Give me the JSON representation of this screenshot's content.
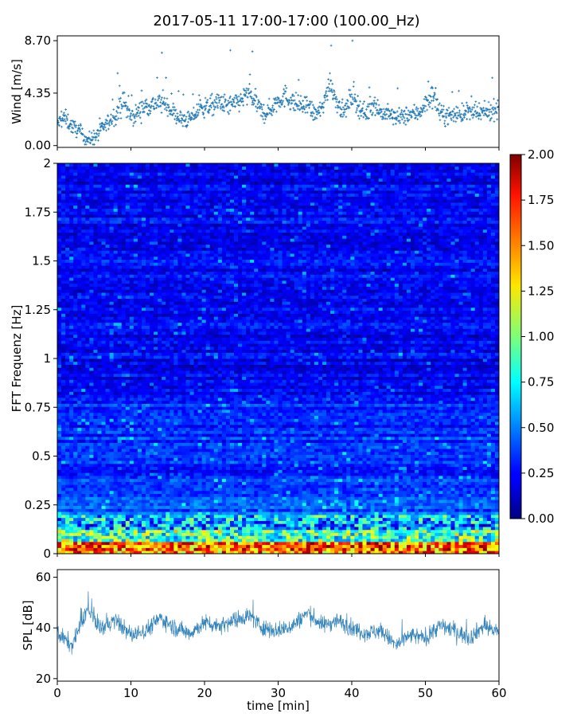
{
  "figure": {
    "title": "2017-05-11 17:00-17:00 (100.00_Hz)"
  },
  "chart_data": [
    {
      "type": "scatter",
      "panel": "wind",
      "ylabel": "Wind [m/s]",
      "xlabel": "",
      "xlim": [
        0,
        60
      ],
      "ylim": [
        0,
        8.7
      ],
      "yticks": [
        0,
        4.35,
        8.7
      ],
      "ytick_labels": [
        "0.00",
        "4.35",
        "8.70"
      ],
      "marker": "+",
      "color": "#1f77b4",
      "envelope": {
        "x": [
          0,
          1,
          2,
          3,
          4,
          5,
          6,
          7,
          8,
          9,
          10,
          11,
          12,
          13,
          14,
          15,
          16,
          17,
          18,
          19,
          20,
          21,
          22,
          23,
          24,
          25,
          26,
          27,
          28,
          29,
          30,
          31,
          32,
          33,
          34,
          35,
          36,
          37,
          38,
          39,
          40,
          41,
          42,
          43,
          44,
          45,
          46,
          47,
          48,
          49,
          50,
          51,
          52,
          53,
          54,
          55,
          56,
          57,
          58,
          59,
          60
        ],
        "y": [
          1.8,
          2.3,
          1.6,
          1.2,
          0.5,
          0.6,
          1.3,
          2.0,
          2.6,
          3.7,
          2.3,
          2.8,
          3.3,
          3.4,
          3.6,
          3.3,
          2.6,
          2.1,
          2.2,
          2.8,
          3.2,
          3.3,
          3.6,
          3.3,
          3.4,
          3.8,
          4.3,
          3.5,
          2.6,
          3.0,
          3.8,
          4.1,
          3.6,
          3.3,
          3.2,
          2.6,
          3.0,
          5.4,
          3.6,
          2.7,
          4.2,
          3.2,
          2.6,
          3.6,
          2.7,
          2.6,
          2.3,
          2.4,
          2.6,
          2.7,
          3.4,
          4.3,
          2.6,
          2.5,
          2.6,
          2.7,
          2.8,
          2.6,
          2.7,
          2.9,
          3.2
        ]
      }
    },
    {
      "type": "heatmap",
      "panel": "spectrogram",
      "ylabel": "FFT Frequenz [Hz]",
      "xlabel": "",
      "xlim": [
        0,
        60
      ],
      "ylim": [
        0,
        2
      ],
      "yticks": [
        0,
        0.25,
        0.5,
        0.75,
        1,
        1.25,
        1.5,
        1.75,
        2
      ],
      "ytick_labels": [
        "0",
        "0.25",
        "0.5",
        "0.75",
        "1",
        "1.25",
        "1.5",
        "1.75",
        "2"
      ],
      "colormap": "jet",
      "colorbar": {
        "vmin": 0,
        "vmax": 2,
        "ticks": [
          "0.00",
          "0.25",
          "0.50",
          "0.75",
          "1.00",
          "1.25",
          "1.50",
          "1.75",
          "2.00"
        ]
      }
    },
    {
      "type": "line",
      "panel": "spl",
      "ylabel": "SPL [dB]",
      "xlabel": "time [min]",
      "xlim": [
        0,
        60
      ],
      "ylim": [
        19,
        63
      ],
      "yticks": [
        20,
        40,
        60
      ],
      "ytick_labels": [
        "20",
        "40",
        "60"
      ],
      "xticks": [
        0,
        10,
        20,
        30,
        40,
        50,
        60
      ],
      "xtick_labels": [
        "0",
        "10",
        "20",
        "30",
        "40",
        "50",
        "60"
      ],
      "color": "#1f77b4",
      "envelope": {
        "x": [
          0,
          2,
          4,
          6,
          8,
          10,
          12,
          14,
          16,
          18,
          20,
          22,
          24,
          26,
          28,
          30,
          32,
          34,
          36,
          38,
          40,
          42,
          44,
          46,
          48,
          50,
          52,
          54,
          56,
          58,
          60
        ],
        "y": [
          38,
          33,
          47,
          40,
          43,
          37,
          39,
          44,
          40,
          38,
          42,
          41,
          43,
          45,
          40,
          39,
          41,
          46,
          41,
          43,
          40,
          38,
          39,
          33,
          37,
          36,
          41,
          39,
          36,
          41,
          38
        ]
      }
    }
  ]
}
